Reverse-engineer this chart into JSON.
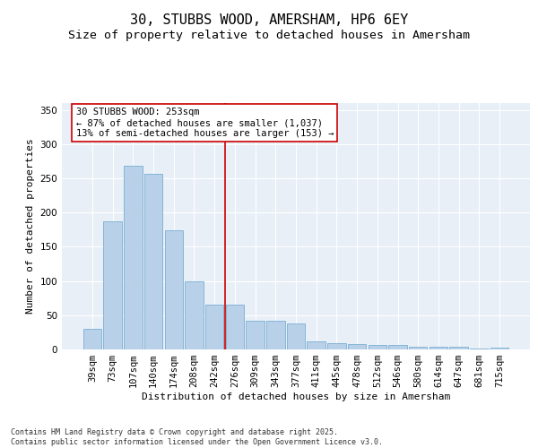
{
  "title": "30, STUBBS WOOD, AMERSHAM, HP6 6EY",
  "subtitle": "Size of property relative to detached houses in Amersham",
  "xlabel": "Distribution of detached houses by size in Amersham",
  "ylabel": "Number of detached properties",
  "categories": [
    "39sqm",
    "73sqm",
    "107sqm",
    "140sqm",
    "174sqm",
    "208sqm",
    "242sqm",
    "276sqm",
    "309sqm",
    "343sqm",
    "377sqm",
    "411sqm",
    "445sqm",
    "478sqm",
    "512sqm",
    "546sqm",
    "580sqm",
    "614sqm",
    "647sqm",
    "681sqm",
    "715sqm"
  ],
  "values": [
    30,
    187,
    269,
    256,
    174,
    100,
    65,
    65,
    42,
    42,
    38,
    12,
    9,
    8,
    7,
    6,
    4,
    4,
    4,
    1,
    2
  ],
  "bar_color": "#b8d0e8",
  "bar_edge_color": "#7aafd4",
  "vline_x": 6.5,
  "vline_color": "#cc0000",
  "annotation_text": "30 STUBBS WOOD: 253sqm\n← 87% of detached houses are smaller (1,037)\n13% of semi-detached houses are larger (153) →",
  "annotation_box_color": "#ffffff",
  "annotation_box_edge": "#cc0000",
  "ylim": [
    0,
    360
  ],
  "yticks": [
    0,
    50,
    100,
    150,
    200,
    250,
    300,
    350
  ],
  "bg_color": "#e8eff7",
  "footer": "Contains HM Land Registry data © Crown copyright and database right 2025.\nContains public sector information licensed under the Open Government Licence v3.0.",
  "title_fontsize": 11,
  "subtitle_fontsize": 9.5,
  "axis_label_fontsize": 8,
  "tick_fontsize": 7.5,
  "annotation_fontsize": 7.5,
  "footer_fontsize": 6
}
